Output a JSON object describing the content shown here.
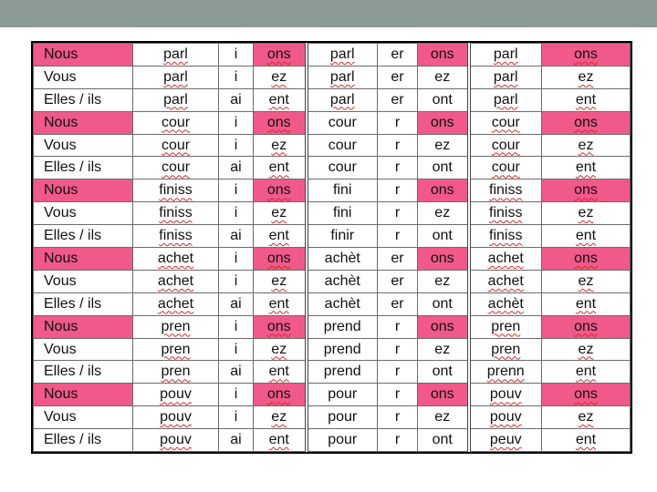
{
  "rows": [
    {
      "p": "Nous",
      "pink": true,
      "s1": "parl",
      "m1": "i",
      "e1": "ons",
      "s2": "parl",
      "m2": "er",
      "e2": "ons",
      "s3": "parl",
      "e3": "ons"
    },
    {
      "p": "Vous",
      "pink": false,
      "s1": "parl",
      "m1": "i",
      "e1": "ez",
      "s2": "parl",
      "m2": "er",
      "e2": "ez",
      "s3": "parl",
      "e3": "ez"
    },
    {
      "p": "Elles / ils",
      "pink": false,
      "s1": "parl",
      "m1": "ai",
      "e1": "ent",
      "s2": "parl",
      "m2": "er",
      "e2": "ont",
      "s3": "parl",
      "e3": "ent"
    },
    {
      "p": "Nous",
      "pink": true,
      "s1": "cour",
      "m1": "i",
      "e1": "ons",
      "s2": "cour",
      "m2": "r",
      "e2": "ons",
      "s3": "cour",
      "e3": "ons"
    },
    {
      "p": "Vous",
      "pink": false,
      "s1": "cour",
      "m1": "i",
      "e1": "ez",
      "s2": "cour",
      "m2": "r",
      "e2": "ez",
      "s3": "cour",
      "e3": "ez"
    },
    {
      "p": "Elles / ils",
      "pink": false,
      "s1": "cour",
      "m1": "ai",
      "e1": "ent",
      "s2": "cour",
      "m2": "r",
      "e2": "ont",
      "s3": "cour",
      "e3": "ent"
    },
    {
      "p": "Nous",
      "pink": true,
      "s1": "finiss",
      "m1": "i",
      "e1": "ons",
      "s2": "fini",
      "m2": "r",
      "e2": "ons",
      "s3": "finiss",
      "e3": "ons"
    },
    {
      "p": "Vous",
      "pink": false,
      "s1": "finiss",
      "m1": "i",
      "e1": "ez",
      "s2": "fini",
      "m2": "r",
      "e2": "ez",
      "s3": "finiss",
      "e3": "ez"
    },
    {
      "p": "Elles / ils",
      "pink": false,
      "s1": "finiss",
      "m1": "ai",
      "e1": "ent",
      "s2": "finir",
      "m2": "r",
      "e2": "ont",
      "s3": "finiss",
      "e3": "ent"
    },
    {
      "p": "Nous",
      "pink": true,
      "s1": "achet",
      "m1": "i",
      "e1": "ons",
      "s2": "achèt",
      "m2": "er",
      "e2": "ons",
      "s3": "achet",
      "e3": "ons"
    },
    {
      "p": "Vous",
      "pink": false,
      "s1": "achet",
      "m1": "i",
      "e1": "ez",
      "s2": "achèt",
      "m2": "er",
      "e2": "ez",
      "s3": "achet",
      "e3": "ez"
    },
    {
      "p": "Elles / ils",
      "pink": false,
      "s1": "achet",
      "m1": "ai",
      "e1": "ent",
      "s2": "achèt",
      "m2": "er",
      "e2": "ont",
      "s3": "achèt",
      "e3": "ent"
    },
    {
      "p": "Nous",
      "pink": true,
      "s1": "pren",
      "m1": "i",
      "e1": "ons",
      "s2": "prend",
      "m2": "r",
      "e2": "ons",
      "s3": "pren",
      "e3": "ons"
    },
    {
      "p": "Vous",
      "pink": false,
      "s1": "pren",
      "m1": "i",
      "e1": "ez",
      "s2": "prend",
      "m2": "r",
      "e2": "ez",
      "s3": "pren",
      "e3": "ez"
    },
    {
      "p": "Elles / ils",
      "pink": false,
      "s1": "pren",
      "m1": "ai",
      "e1": "ent",
      "s2": "prend",
      "m2": "r",
      "e2": "ont",
      "s3": "prenn",
      "e3": "ent"
    },
    {
      "p": "Nous",
      "pink": true,
      "s1": "pouv",
      "m1": "i",
      "e1": "ons",
      "s2": "pour",
      "m2": "r",
      "e2": "ons",
      "s3": "pouv",
      "e3": "ons"
    },
    {
      "p": "Vous",
      "pink": false,
      "s1": "pouv",
      "m1": "i",
      "e1": "ez",
      "s2": "pour",
      "m2": "r",
      "e2": "ez",
      "s3": "pouv",
      "e3": "ez"
    },
    {
      "p": "Elles / ils",
      "pink": false,
      "s1": "pouv",
      "m1": "ai",
      "e1": "ent",
      "s2": "pour",
      "m2": "r",
      "e2": "ont",
      "s3": "peuv",
      "e3": "ent"
    }
  ],
  "colors": {
    "highlight": "#f0598a",
    "top_bar": "#8c9a94"
  }
}
